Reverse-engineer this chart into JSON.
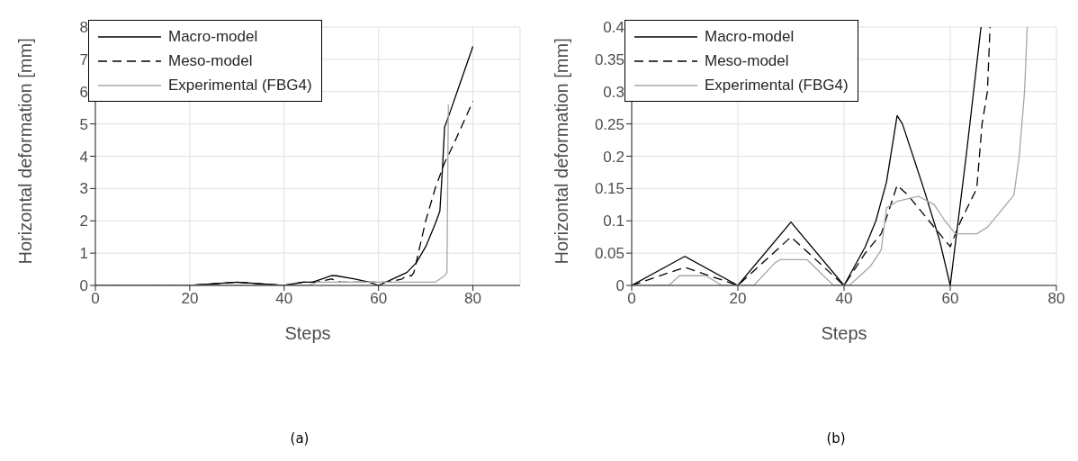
{
  "chart_data": [
    {
      "type": "line",
      "xlabel": "Steps",
      "ylabel": "Horizontal deformation [mm]",
      "xlim": [
        0,
        90
      ],
      "xticks": [
        0,
        20,
        40,
        60,
        80
      ],
      "ylim": [
        0,
        8
      ],
      "yticks": [
        0,
        1,
        2,
        3,
        4,
        5,
        6,
        7,
        8
      ],
      "grid": true,
      "legend": "top left",
      "annotations": [
        "(a)"
      ],
      "series": [
        {
          "name": "Macro-model",
          "color": "#000000",
          "line_style": "solid",
          "x": [
            0,
            10,
            20,
            30,
            40,
            44,
            46,
            48,
            50,
            51,
            55,
            58,
            60,
            63,
            66,
            68,
            70,
            72,
            73,
            73.5,
            74,
            75,
            80
          ],
          "values": [
            0,
            0,
            0,
            0.1,
            0,
            0.1,
            0.1,
            0.2,
            0.3,
            0.3,
            0.2,
            0.1,
            0,
            0.2,
            0.4,
            0.7,
            1.2,
            1.9,
            2.3,
            3.5,
            4.9,
            5.3,
            7.4
          ]
        },
        {
          "name": "Meso-model",
          "color": "#000000",
          "line_style": "dashed",
          "x": [
            0,
            10,
            20,
            30,
            40,
            44,
            47,
            50,
            52,
            55,
            58,
            60,
            62,
            65,
            66,
            67,
            67.5,
            70,
            72,
            74,
            76,
            80
          ],
          "values": [
            0,
            0,
            0,
            0.1,
            0,
            0.1,
            0.1,
            0.2,
            0.1,
            0.1,
            0.1,
            0.1,
            0.1,
            0.2,
            0.3,
            0.3,
            0.4,
            2.0,
            3.0,
            3.8,
            4.4,
            5.7
          ]
        },
        {
          "name": "Experimental (FBG4)",
          "color": "#a6a6a6",
          "line_style": "solid",
          "x": [
            0,
            7,
            9,
            14,
            17,
            23,
            27,
            28,
            33,
            38,
            41,
            45,
            47,
            48,
            50,
            54,
            57,
            59,
            61,
            65,
            67,
            69,
            72,
            73,
            74,
            74.5,
            74.8
          ],
          "values": [
            0,
            0,
            0,
            0,
            0,
            0,
            0,
            0,
            0,
            0,
            0,
            0,
            0.1,
            0.1,
            0.1,
            0.1,
            0.1,
            0.1,
            0.1,
            0.1,
            0.1,
            0.1,
            0.1,
            0.2,
            0.3,
            0.4,
            5.6
          ]
        }
      ]
    },
    {
      "type": "line",
      "xlabel": "Steps",
      "ylabel": "Horizontal deformation [mm]",
      "xlim": [
        0,
        80
      ],
      "xticks": [
        0,
        20,
        40,
        60,
        80
      ],
      "ylim": [
        0,
        0.4
      ],
      "yticks": [
        0,
        0.05,
        0.1,
        0.15,
        0.2,
        0.25,
        0.3,
        0.35,
        0.4
      ],
      "grid": true,
      "legend": "top left",
      "annotations": [
        "(b)"
      ],
      "series": [
        {
          "name": "Macro-model",
          "color": "#000000",
          "line_style": "solid",
          "x": [
            0,
            10,
            20,
            30,
            40,
            44,
            46,
            48,
            50,
            51,
            55,
            58,
            60,
            63,
            65.8
          ],
          "values": [
            0,
            0.045,
            0,
            0.098,
            0,
            0.06,
            0.1,
            0.16,
            0.263,
            0.25,
            0.15,
            0.07,
            0,
            0.2,
            0.4
          ]
        },
        {
          "name": "Meso-model",
          "color": "#000000",
          "line_style": "dashed",
          "x": [
            0,
            10,
            20,
            30,
            40,
            44,
            47,
            50,
            52,
            55,
            58,
            60,
            62,
            65,
            66,
            67,
            67.5
          ],
          "values": [
            0,
            0.028,
            0,
            0.075,
            0,
            0.05,
            0.08,
            0.155,
            0.14,
            0.11,
            0.08,
            0.06,
            0.1,
            0.15,
            0.25,
            0.3,
            0.4
          ]
        },
        {
          "name": "Experimental (FBG4)",
          "color": "#a6a6a6",
          "line_style": "solid",
          "x": [
            0,
            7,
            9,
            14,
            17,
            23,
            27,
            28,
            33,
            38,
            41,
            45,
            47,
            48,
            50,
            54,
            57,
            59,
            61,
            65,
            67,
            69,
            72,
            73,
            74,
            74.5
          ],
          "values": [
            0,
            0,
            0.015,
            0.015,
            0,
            0,
            0.035,
            0.04,
            0.04,
            0,
            0,
            0.03,
            0.055,
            0.12,
            0.13,
            0.138,
            0.125,
            0.1,
            0.08,
            0.08,
            0.09,
            0.11,
            0.14,
            0.2,
            0.3,
            0.4
          ]
        }
      ]
    }
  ]
}
